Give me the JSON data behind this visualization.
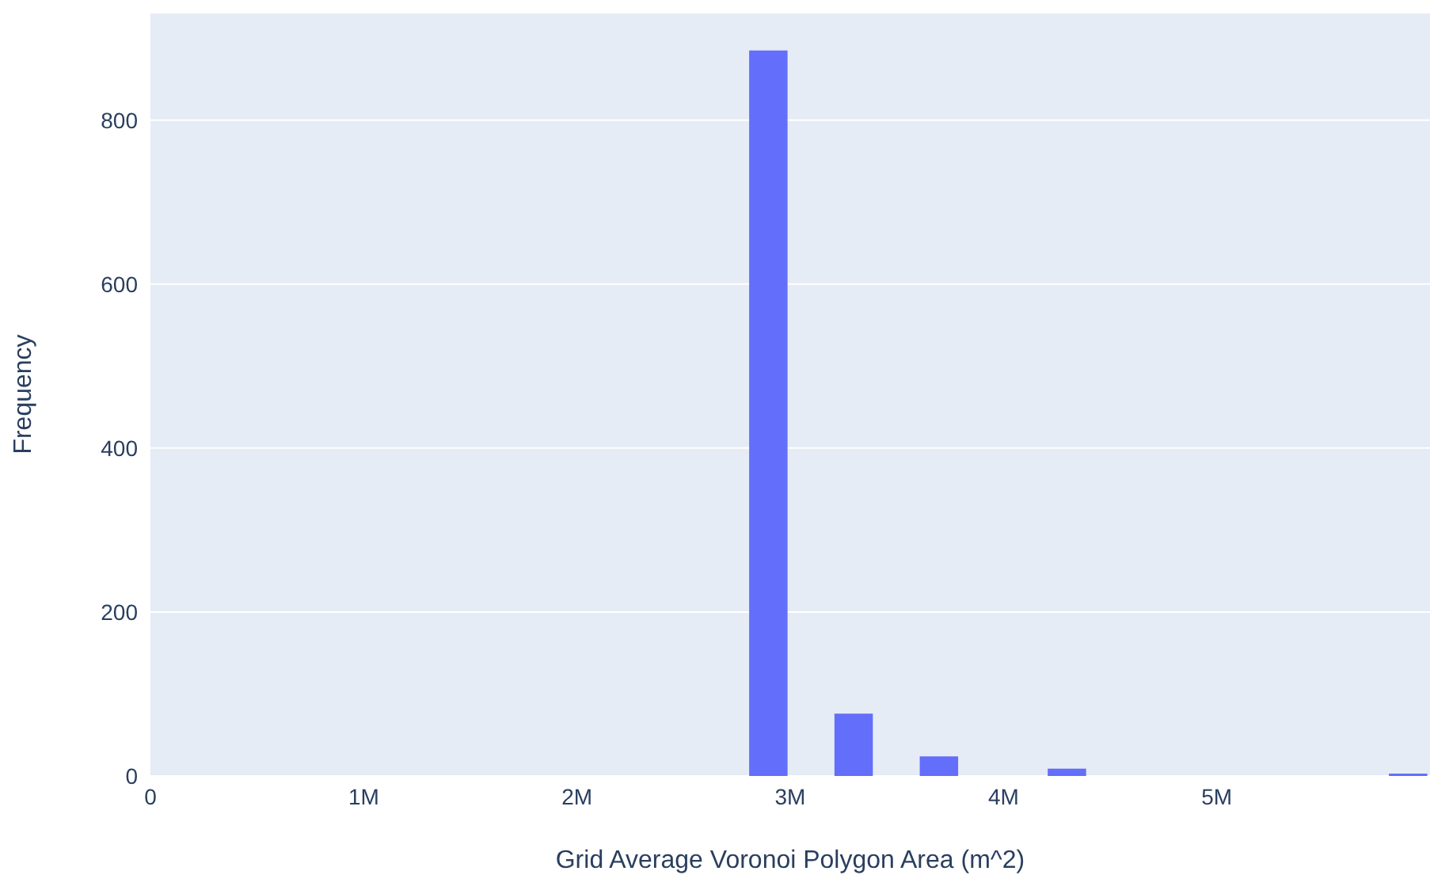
{
  "chart_data": {
    "type": "histogram",
    "xlabel": "Grid Average Voronoi Polygon Area (m^2)",
    "ylabel": "Frequency",
    "bins": [
      2800000,
      3000000,
      3200000,
      3400000,
      3600000,
      3800000,
      4000000,
      4200000,
      4400000,
      4600000,
      4800000,
      5000000,
      5200000,
      5400000,
      5600000,
      5800000,
      6000000
    ],
    "values": [
      885,
      0,
      76,
      0,
      24,
      0,
      0,
      9,
      0,
      0,
      0,
      0,
      0,
      0,
      0,
      3
    ],
    "color": "#636efa",
    "xlim": [
      0,
      6000000
    ],
    "xticks": [
      0,
      {
        "value": 1000000,
        "label": "1M"
      },
      {
        "value": 2000000,
        "label": "2M"
      },
      {
        "value": 3000000,
        "label": "3M"
      },
      {
        "value": 4000000,
        "label": "4M"
      },
      {
        "value": 5000000,
        "label": "5M"
      }
    ],
    "ylim": [
      0,
      931
    ],
    "yticks": [
      0,
      200,
      400,
      600,
      800
    ],
    "grid": "y"
  }
}
